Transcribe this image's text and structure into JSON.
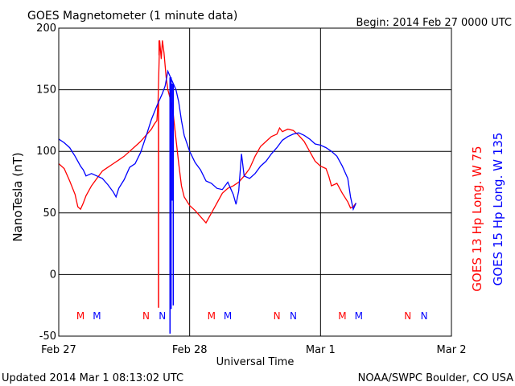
{
  "header": {
    "title": "GOES Magnetometer (1 minute data)",
    "begin": "Begin:  2014 Feb 27 0000 UTC"
  },
  "footer": {
    "updated": "Updated 2014 Mar  1 08:13:02 UTC",
    "credit": "NOAA/SWPC Boulder, CO USA"
  },
  "colors": {
    "goes13": "#ff0000",
    "goes15": "#0000ff",
    "axis": "#000000"
  },
  "chart_data": {
    "type": "line",
    "title": "GOES Magnetometer (1 minute data)",
    "xlabel": "Universal Time",
    "ylabel": "NanoTesla (nT)",
    "xlim": [
      0,
      72
    ],
    "ylim": [
      -50,
      200
    ],
    "x_ticks": [
      {
        "hour": 0,
        "label": "Feb 27"
      },
      {
        "hour": 24,
        "label": "Feb 28"
      },
      {
        "hour": 48,
        "label": "Mar 1"
      },
      {
        "hour": 72,
        "label": "Mar 2"
      }
    ],
    "y_ticks": [
      -50,
      0,
      50,
      100,
      150,
      200
    ],
    "grid": true,
    "series": [
      {
        "name": "GOES 13 Hp   Long. W 75",
        "color": "#ff0000",
        "points": [
          [
            0,
            90
          ],
          [
            1,
            86
          ],
          [
            2,
            76
          ],
          [
            3,
            65
          ],
          [
            3.5,
            55
          ],
          [
            4,
            53
          ],
          [
            4.5,
            58
          ],
          [
            5,
            64
          ],
          [
            6,
            72
          ],
          [
            7,
            78
          ],
          [
            8,
            84
          ],
          [
            9,
            87
          ],
          [
            10,
            90
          ],
          [
            11,
            93
          ],
          [
            12,
            96
          ],
          [
            13,
            100
          ],
          [
            14,
            104
          ],
          [
            15,
            108
          ],
          [
            16,
            113
          ],
          [
            17,
            118
          ],
          [
            17.5,
            122
          ],
          [
            18,
            125
          ],
          [
            18.2,
            140
          ],
          [
            18.5,
            190
          ],
          [
            18.8,
            175
          ],
          [
            19,
            190
          ],
          [
            19.3,
            180
          ],
          [
            19.7,
            160
          ],
          [
            20,
            150
          ],
          [
            20.5,
            142
          ],
          [
            21,
            130
          ],
          [
            21.5,
            110
          ],
          [
            22,
            90
          ],
          [
            22.5,
            72
          ],
          [
            23,
            63
          ],
          [
            24,
            56
          ],
          [
            25,
            52
          ],
          [
            26,
            47
          ],
          [
            27,
            42
          ],
          [
            28,
            50
          ],
          [
            29,
            58
          ],
          [
            30,
            66
          ],
          [
            31,
            70
          ],
          [
            32,
            72
          ],
          [
            33,
            75
          ],
          [
            34,
            80
          ],
          [
            35,
            86
          ],
          [
            36,
            96
          ],
          [
            37,
            104
          ],
          [
            38,
            108
          ],
          [
            39,
            112
          ],
          [
            40,
            114
          ],
          [
            40.5,
            119
          ],
          [
            41,
            116
          ],
          [
            42,
            118
          ],
          [
            43,
            117
          ],
          [
            44,
            113
          ],
          [
            45,
            108
          ],
          [
            46,
            100
          ],
          [
            47,
            92
          ],
          [
            48,
            88
          ],
          [
            49,
            86
          ],
          [
            49.5,
            80
          ],
          [
            50,
            72
          ],
          [
            51,
            74
          ],
          [
            52,
            66
          ],
          [
            53,
            59
          ],
          [
            53.5,
            54
          ],
          [
            54,
            55
          ],
          [
            54.5,
            58
          ]
        ],
        "spikes": [
          [
            18.3,
            -27
          ],
          [
            18.4,
            178
          ]
        ]
      },
      {
        "name": "GOES 15 Hp   Long. W 135",
        "color": "#0000ff",
        "points": [
          [
            0,
            110
          ],
          [
            1,
            107
          ],
          [
            2,
            103
          ],
          [
            3,
            96
          ],
          [
            4,
            88
          ],
          [
            4.5,
            85
          ],
          [
            5,
            80
          ],
          [
            6,
            82
          ],
          [
            7,
            80
          ],
          [
            8,
            78
          ],
          [
            9,
            73
          ],
          [
            10,
            67
          ],
          [
            10.5,
            63
          ],
          [
            11,
            70
          ],
          [
            12,
            77
          ],
          [
            13,
            87
          ],
          [
            14,
            90
          ],
          [
            15,
            99
          ],
          [
            16,
            112
          ],
          [
            17,
            126
          ],
          [
            18,
            137
          ],
          [
            19,
            147
          ],
          [
            19.5,
            153
          ],
          [
            20,
            165
          ],
          [
            20.5,
            160
          ],
          [
            21,
            155
          ],
          [
            21.5,
            150
          ],
          [
            22,
            140
          ],
          [
            22.5,
            125
          ],
          [
            23,
            113
          ],
          [
            24,
            100
          ],
          [
            25,
            91
          ],
          [
            26,
            85
          ],
          [
            27,
            76
          ],
          [
            28,
            74
          ],
          [
            29,
            70
          ],
          [
            30,
            69
          ],
          [
            31,
            75
          ],
          [
            31.5,
            70
          ],
          [
            32,
            65
          ],
          [
            32.5,
            57
          ],
          [
            33,
            68
          ],
          [
            33.5,
            98
          ],
          [
            34,
            80
          ],
          [
            35,
            78
          ],
          [
            36,
            82
          ],
          [
            37,
            88
          ],
          [
            38,
            92
          ],
          [
            39,
            98
          ],
          [
            40,
            103
          ],
          [
            41,
            109
          ],
          [
            42,
            112
          ],
          [
            43,
            114
          ],
          [
            44,
            115
          ],
          [
            45,
            113
          ],
          [
            46,
            110
          ],
          [
            47,
            106
          ],
          [
            48,
            105
          ],
          [
            49,
            103
          ],
          [
            50,
            100
          ],
          [
            51,
            96
          ],
          [
            52,
            88
          ],
          [
            53,
            78
          ],
          [
            53.5,
            63
          ],
          [
            54,
            53
          ],
          [
            54.5,
            58
          ]
        ],
        "spikes": [
          [
            20.4,
            -48
          ],
          [
            20.6,
            -28
          ],
          [
            20.8,
            60
          ],
          [
            21,
            -25
          ]
        ]
      }
    ],
    "annotations": [
      {
        "hour": 4,
        "label": "M",
        "series": "GOES 13"
      },
      {
        "hour": 7,
        "label": "M",
        "series": "GOES 15"
      },
      {
        "hour": 16,
        "label": "N",
        "series": "GOES 13"
      },
      {
        "hour": 19,
        "label": "N",
        "series": "GOES 15"
      },
      {
        "hour": 28,
        "label": "M",
        "series": "GOES 13"
      },
      {
        "hour": 31,
        "label": "M",
        "series": "GOES 15"
      },
      {
        "hour": 40,
        "label": "N",
        "series": "GOES 13"
      },
      {
        "hour": 43,
        "label": "N",
        "series": "GOES 15"
      },
      {
        "hour": 52,
        "label": "M",
        "series": "GOES 13"
      },
      {
        "hour": 55,
        "label": "M",
        "series": "GOES 15"
      },
      {
        "hour": 64,
        "label": "N",
        "series": "GOES 13"
      },
      {
        "hour": 67,
        "label": "N",
        "series": "GOES 15"
      }
    ]
  }
}
